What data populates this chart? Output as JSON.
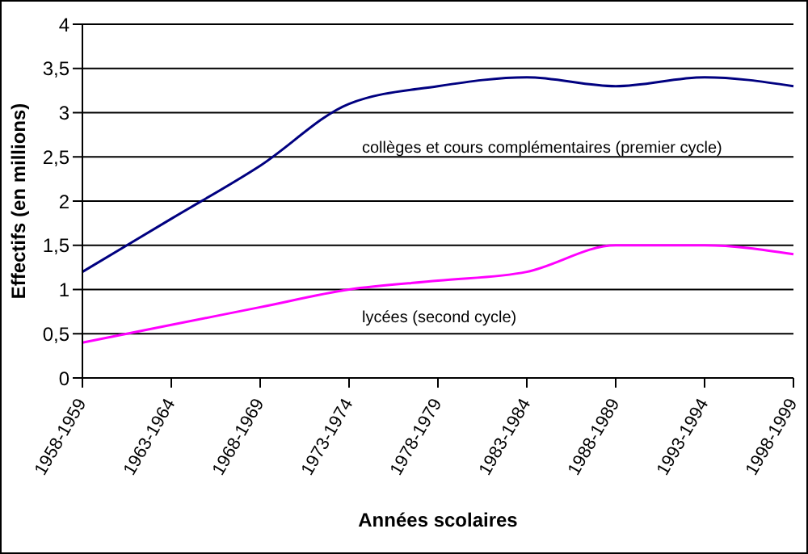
{
  "chart_data": {
    "type": "line",
    "xlabel": "Années scolaires",
    "ylabel": "Effectifs (en millions)",
    "categories": [
      "1958-1959",
      "1963-1964",
      "1968-1969",
      "1973-1974",
      "1978-1979",
      "1983-1984",
      "1988-1989",
      "1993-1994",
      "1998-1999"
    ],
    "series": [
      {
        "name": "collèges et cours complémentaires (premier cycle)",
        "color": "#000080",
        "values": [
          1.2,
          1.8,
          2.4,
          3.1,
          3.3,
          3.4,
          3.3,
          3.4,
          3.3
        ]
      },
      {
        "name": "lycées (second cycle)",
        "color": "#ff00ff",
        "values": [
          0.4,
          0.6,
          0.8,
          1.0,
          1.1,
          1.2,
          1.5,
          1.5,
          1.4
        ]
      }
    ],
    "ylim": [
      0,
      4
    ],
    "yticks": [
      0,
      {
        "value": 0.5,
        "label": "0,5"
      },
      1,
      {
        "value": 1.5,
        "label": "1,5"
      },
      2,
      {
        "value": 2.5,
        "label": "2,5"
      },
      3,
      {
        "value": 3.5,
        "label": "3,5"
      },
      4
    ],
    "grid": "y",
    "legend": false,
    "marker": "none",
    "line_style": "solid"
  }
}
